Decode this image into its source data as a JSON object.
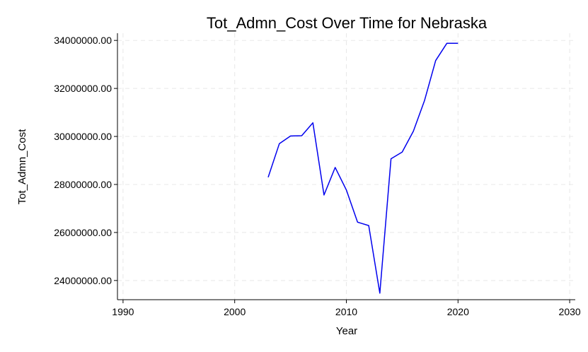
{
  "chart_data": {
    "type": "line",
    "title": "Tot_Admn_Cost Over Time for Nebraska",
    "xlabel": "Year",
    "ylabel": "Tot_Admn_Cost",
    "xlim": [
      1989.5,
      2030.5
    ],
    "ylim": [
      23200000,
      34300000
    ],
    "x_ticks": [
      1990,
      2000,
      2010,
      2020,
      2030
    ],
    "y_ticks": [
      24000000,
      26000000,
      28000000,
      30000000,
      32000000,
      34000000
    ],
    "x_tick_labels": [
      "1990",
      "2000",
      "2010",
      "2020",
      "2030"
    ],
    "y_tick_labels": [
      "24000000.00",
      "26000000.00",
      "28000000.00",
      "30000000.00",
      "32000000.00",
      "34000000.00"
    ],
    "grid": true,
    "series": [
      {
        "color": "#0000ee",
        "x": [
          2003,
          2004,
          2005,
          2006,
          2007,
          2008,
          2009,
          2010,
          2011,
          2012,
          2013,
          2014,
          2015,
          2016,
          2017,
          2018,
          2019,
          2020
        ],
        "values": [
          28300000,
          29700000,
          30020000,
          30030000,
          30570000,
          27560000,
          28710000,
          27770000,
          26430000,
          26290000,
          23470000,
          29070000,
          29350000,
          30220000,
          31500000,
          33160000,
          33880000,
          33880000
        ]
      }
    ]
  }
}
